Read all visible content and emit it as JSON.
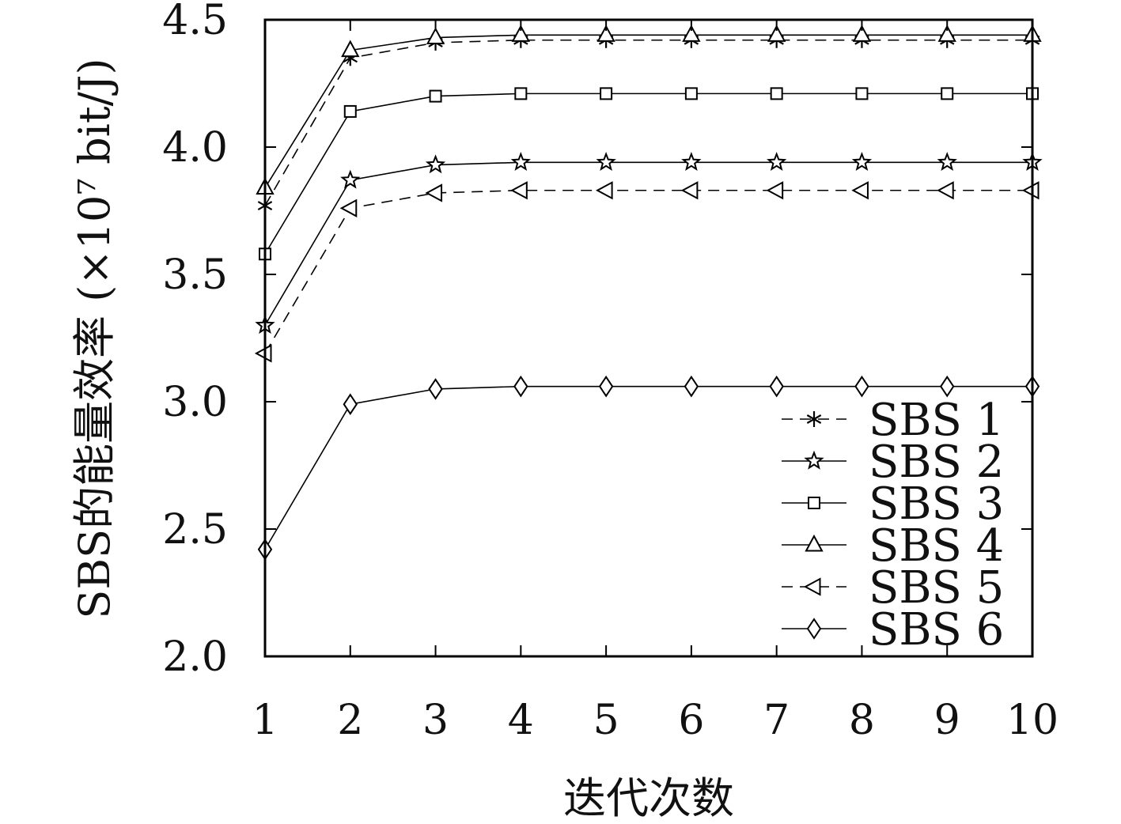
{
  "chart_data": {
    "type": "line",
    "title": "",
    "xlabel": "迭代次数",
    "ylabel": "SBS的能量效率 (×10⁷ bit/J)",
    "x": [
      1,
      2,
      3,
      4,
      5,
      6,
      7,
      8,
      9,
      10
    ],
    "xlim": [
      1,
      10
    ],
    "ylim": [
      2.0,
      4.5
    ],
    "xticks": [
      "1",
      "2",
      "3",
      "4",
      "5",
      "6",
      "7",
      "8",
      "9",
      "10"
    ],
    "yticks": [
      "2.0",
      "2.5",
      "3.0",
      "3.5",
      "4.0",
      "4.5"
    ],
    "grid": false,
    "legend_position": "bottom-right",
    "series": [
      {
        "name": "SBS 1",
        "marker": "asterisk",
        "dash": "dashed",
        "values": [
          3.77,
          4.35,
          4.41,
          4.42,
          4.42,
          4.42,
          4.42,
          4.42,
          4.42,
          4.42
        ]
      },
      {
        "name": "SBS 2",
        "marker": "star",
        "dash": "solid",
        "values": [
          3.3,
          3.87,
          3.93,
          3.94,
          3.94,
          3.94,
          3.94,
          3.94,
          3.94,
          3.94
        ]
      },
      {
        "name": "SBS 3",
        "marker": "square",
        "dash": "solid",
        "values": [
          3.58,
          4.14,
          4.2,
          4.21,
          4.21,
          4.21,
          4.21,
          4.21,
          4.21,
          4.21
        ]
      },
      {
        "name": "SBS 4",
        "marker": "triangle-up",
        "dash": "solid",
        "values": [
          3.84,
          4.38,
          4.43,
          4.44,
          4.44,
          4.44,
          4.44,
          4.44,
          4.44,
          4.44
        ]
      },
      {
        "name": "SBS 5",
        "marker": "triangle-left",
        "dash": "dashed",
        "values": [
          3.19,
          3.76,
          3.82,
          3.83,
          3.83,
          3.83,
          3.83,
          3.83,
          3.83,
          3.83
        ]
      },
      {
        "name": "SBS 6",
        "marker": "diamond",
        "dash": "solid",
        "values": [
          2.42,
          2.99,
          3.05,
          3.06,
          3.06,
          3.06,
          3.06,
          3.06,
          3.06,
          3.06
        ]
      }
    ]
  }
}
